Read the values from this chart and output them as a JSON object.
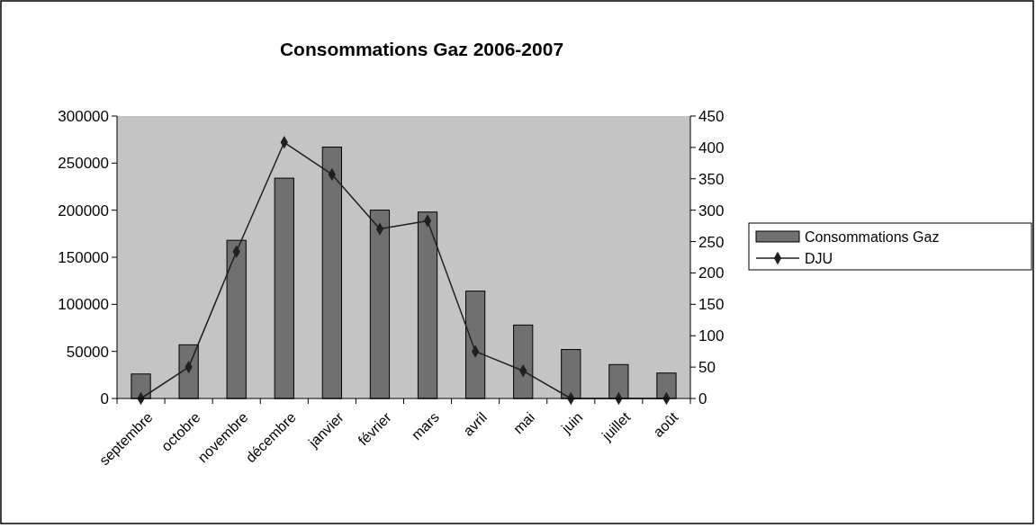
{
  "chart_data": {
    "type": "bar",
    "title": "Consommations Gaz 2006-2007",
    "categories": [
      "septembre",
      "octobre",
      "novembre",
      "décembre",
      "janvier",
      "février",
      "mars",
      "avril",
      "mai",
      "juin",
      "juillet",
      "août"
    ],
    "series": [
      {
        "name": "Consommations Gaz",
        "color": "#707070",
        "values": [
          26000,
          57000,
          168000,
          234000,
          267000,
          200000,
          198000,
          114000,
          78000,
          52000,
          36000,
          27000
        ]
      },
      {
        "name": "DJU",
        "type": "line",
        "axis": "y2",
        "color": "#202020",
        "marker": "diamond",
        "values": [
          0,
          50,
          234,
          408,
          357,
          270,
          283,
          75,
          44,
          0,
          0,
          0
        ]
      }
    ],
    "ylim": [
      0,
      300000
    ],
    "yticks": [
      0,
      50000,
      100000,
      150000,
      200000,
      250000,
      300000
    ],
    "y2lim": [
      0,
      450
    ],
    "y2ticks": [
      0,
      50,
      100,
      150,
      200,
      250,
      300,
      350,
      400,
      450
    ],
    "grid": false,
    "legend": "right"
  }
}
